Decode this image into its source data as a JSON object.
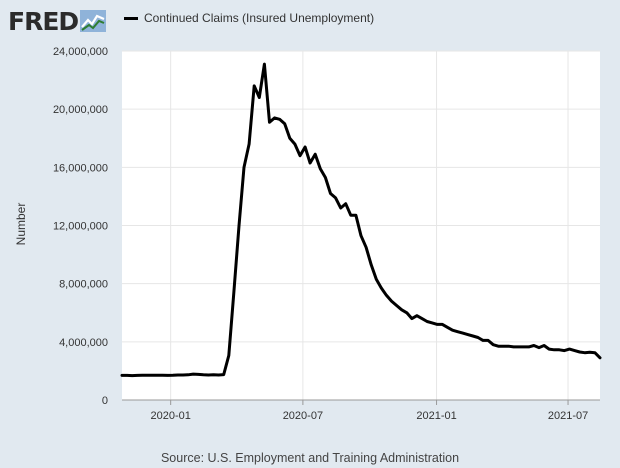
{
  "header": {
    "logo_text": "FRED",
    "logo_icon": "fred-chart-icon"
  },
  "colors": {
    "background": "#e1e9f0",
    "plot_background": "#ffffff",
    "line": "#000000",
    "grid": "#e6e6e6"
  },
  "source": "Source: U.S. Employment and Training Administration",
  "chart_data": {
    "type": "line",
    "title": "",
    "xlabel": "",
    "ylabel": "Number",
    "legend": "top-left",
    "grid": true,
    "ylim": [
      0,
      24000000
    ],
    "yticks": [
      0,
      4000000,
      8000000,
      12000000,
      16000000,
      20000000,
      24000000
    ],
    "ytick_labels": [
      "0",
      "4,000,000",
      "8,000,000",
      "12,000,000",
      "16,000,000",
      "20,000,000",
      "24,000,000"
    ],
    "xlim": [
      "2019-10-26",
      "2021-08-14"
    ],
    "xticks": [
      "2020-01-01",
      "2020-07-01",
      "2021-01-01",
      "2021-07-01"
    ],
    "xtick_labels": [
      "2020-01",
      "2020-07",
      "2021-01",
      "2021-07"
    ],
    "series": [
      {
        "name": "Continued Claims (Insured Unemployment)",
        "x": [
          "2019-10-26",
          "2019-11-02",
          "2019-11-09",
          "2019-11-16",
          "2019-11-23",
          "2019-11-30",
          "2019-12-07",
          "2019-12-14",
          "2019-12-21",
          "2019-12-28",
          "2020-01-04",
          "2020-01-11",
          "2020-01-18",
          "2020-01-25",
          "2020-02-01",
          "2020-02-08",
          "2020-02-15",
          "2020-02-22",
          "2020-02-29",
          "2020-03-07",
          "2020-03-14",
          "2020-03-21",
          "2020-03-28",
          "2020-04-04",
          "2020-04-11",
          "2020-04-18",
          "2020-04-25",
          "2020-05-02",
          "2020-05-09",
          "2020-05-16",
          "2020-05-23",
          "2020-05-30",
          "2020-06-06",
          "2020-06-13",
          "2020-06-20",
          "2020-06-27",
          "2020-07-04",
          "2020-07-11",
          "2020-07-18",
          "2020-07-25",
          "2020-08-01",
          "2020-08-08",
          "2020-08-15",
          "2020-08-22",
          "2020-08-29",
          "2020-09-05",
          "2020-09-12",
          "2020-09-19",
          "2020-09-26",
          "2020-10-03",
          "2020-10-10",
          "2020-10-17",
          "2020-10-24",
          "2020-10-31",
          "2020-11-07",
          "2020-11-14",
          "2020-11-21",
          "2020-11-28",
          "2020-12-05",
          "2020-12-12",
          "2020-12-19",
          "2020-12-26",
          "2021-01-02",
          "2021-01-09",
          "2021-01-16",
          "2021-01-23",
          "2021-01-30",
          "2021-02-06",
          "2021-02-13",
          "2021-02-20",
          "2021-02-27",
          "2021-03-06",
          "2021-03-13",
          "2021-03-20",
          "2021-03-27",
          "2021-04-03",
          "2021-04-10",
          "2021-04-17",
          "2021-04-24",
          "2021-05-01",
          "2021-05-08",
          "2021-05-15",
          "2021-05-22",
          "2021-05-29",
          "2021-06-05",
          "2021-06-12",
          "2021-06-19",
          "2021-06-26",
          "2021-07-03",
          "2021-07-10",
          "2021-07-17",
          "2021-07-24",
          "2021-07-31",
          "2021-08-07",
          "2021-08-14"
        ],
        "values": [
          1690000,
          1690000,
          1680000,
          1690000,
          1700000,
          1700000,
          1700000,
          1700000,
          1700000,
          1690000,
          1700000,
          1720000,
          1720000,
          1730000,
          1780000,
          1760000,
          1730000,
          1720000,
          1730000,
          1720000,
          1750000,
          3060000,
          7450000,
          11980000,
          16000000,
          17600000,
          21600000,
          20800000,
          23100000,
          19100000,
          19400000,
          19300000,
          19000000,
          18000000,
          17600000,
          16800000,
          17400000,
          16300000,
          16900000,
          15900000,
          15300000,
          14200000,
          13900000,
          13200000,
          13500000,
          12700000,
          12700000,
          11300000,
          10500000,
          9300000,
          8300000,
          7700000,
          7200000,
          6800000,
          6500000,
          6200000,
          6000000,
          5600000,
          5800000,
          5600000,
          5400000,
          5300000,
          5200000,
          5200000,
          5000000,
          4800000,
          4700000,
          4600000,
          4500000,
          4400000,
          4300000,
          4100000,
          4100000,
          3800000,
          3700000,
          3700000,
          3700000,
          3650000,
          3650000,
          3650000,
          3650000,
          3750000,
          3600000,
          3750000,
          3500000,
          3450000,
          3450000,
          3400000,
          3500000,
          3400000,
          3300000,
          3250000,
          3280000,
          3250000,
          2900000
        ]
      }
    ]
  }
}
